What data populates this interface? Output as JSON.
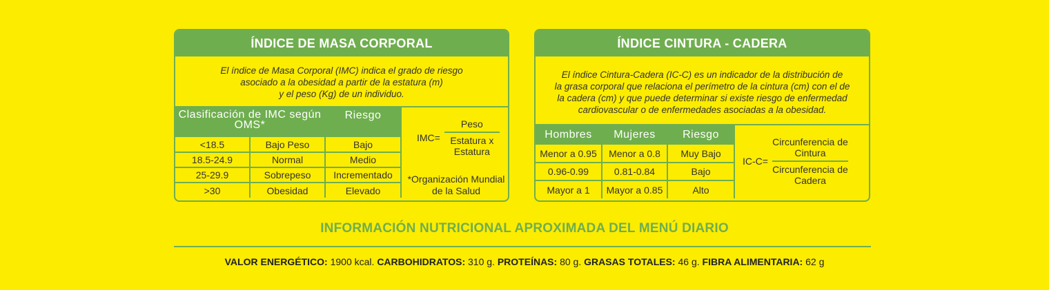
{
  "imc": {
    "title": "ÍNDICE DE MASA CORPORAL",
    "description": [
      "El índice de Masa Corporal (IMC) indica el grado de riesgo",
      "asociado a la obesidad a partir de la estatura (m)",
      "y el peso (Kg) de un individuo."
    ],
    "headers": [
      "Clasificación de IMC según OMS*",
      "Riesgo"
    ],
    "rows": [
      {
        "range": "<18.5",
        "class": "Bajo Peso",
        "risk": "Bajo"
      },
      {
        "range": "18.5-24.9",
        "class": "Normal",
        "risk": "Medio"
      },
      {
        "range": "25-29.9",
        "class": "Sobrepeso",
        "risk": "Incrementado"
      },
      {
        "range": ">30",
        "class": "Obesidad",
        "risk": "Elevado"
      }
    ],
    "formula": {
      "label": "IMC=",
      "numerator": "Peso",
      "denominator": "Estatura x Estatura"
    },
    "note": "*Organización Mundial de la Salud"
  },
  "icc": {
    "title": "ÍNDICE CINTURA - CADERA",
    "description": [
      "El índice Cintura-Cadera (IC-C) es un indicador de la distribución de",
      "la grasa corporal que relaciona el perímetro de la cintura (cm) con el de",
      "la cadera (cm) y que puede determinar si existe riesgo de enfermedad",
      "cardiovascular o de enfermedades asociadas a la obesidad."
    ],
    "headers": [
      "Hombres",
      "Mujeres",
      "Riesgo"
    ],
    "rows": [
      {
        "men": "Menor a 0.95",
        "women": "Menor a 0.8",
        "risk": "Muy Bajo"
      },
      {
        "men": "0.96-0.99",
        "women": "0.81-0.84",
        "risk": "Bajo"
      },
      {
        "men": "Mayor a 1",
        "women": "Mayor a 0.85",
        "risk": "Alto"
      }
    ],
    "formula": {
      "label": "IC-C=",
      "numerator": "Circunferencia de Cintura",
      "denominator": "Circunferencia de Cadera"
    }
  },
  "nutrition": {
    "title": "INFORMACIÓN NUTRICIONAL APROXIMADA DEL MENÚ DIARIO",
    "items": [
      {
        "label": "VALOR ENERGÉTICO:",
        "value": "1900 kcal."
      },
      {
        "label": "CARBOHIDRATOS:",
        "value": "310 g."
      },
      {
        "label": "PROTEÍNAS:",
        "value": "80 g."
      },
      {
        "label": "GRASAS TOTALES:",
        "value": "46 g."
      },
      {
        "label": "FIBRA ALIMENTARIA:",
        "value": "62 g"
      }
    ]
  },
  "colors": {
    "background": "#FCEC00",
    "accent": "#6FAE4E"
  }
}
